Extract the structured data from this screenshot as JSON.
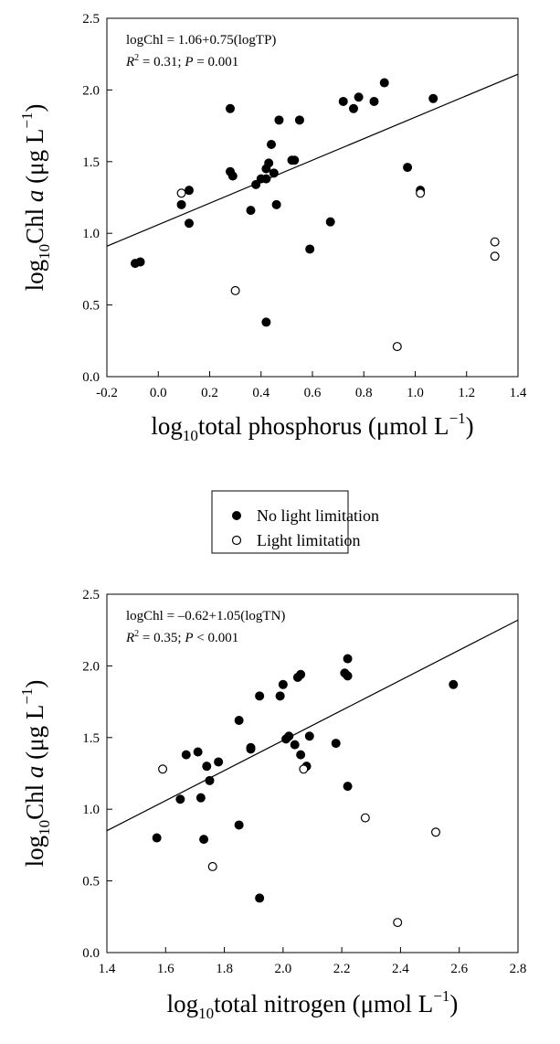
{
  "legend": {
    "items": [
      {
        "label": "No light limitation",
        "marker": "filled-circle",
        "color": "#000000"
      },
      {
        "label": "Light limitation",
        "marker": "open-circle",
        "color": "#000000"
      }
    ]
  },
  "chart_data": [
    {
      "type": "scatter",
      "xlabel": "log10total phosphorus (μmol L−1)",
      "ylabel": "log10Chl a (μg L−1)",
      "xlim": [
        -0.2,
        1.4
      ],
      "ylim": [
        0.0,
        2.5
      ],
      "xticks": [
        "-0.2",
        "0.0",
        "0.2",
        "0.4",
        "0.6",
        "0.8",
        "1.0",
        "1.2",
        "1.4"
      ],
      "yticks": [
        "0.0",
        "0.5",
        "1.0",
        "1.5",
        "2.0",
        "2.5"
      ],
      "equation": "logChl = 1.06+0.75(logTP)",
      "stats": "R2 = 0.31; P = 0.001",
      "regression": {
        "intercept": 1.06,
        "slope": 0.75
      },
      "series": [
        {
          "name": "No light limitation",
          "points": [
            [
              -0.09,
              0.79
            ],
            [
              -0.07,
              0.8
            ],
            [
              0.09,
              1.2
            ],
            [
              0.12,
              1.3
            ],
            [
              0.12,
              1.07
            ],
            [
              0.28,
              1.43
            ],
            [
              0.28,
              1.87
            ],
            [
              0.29,
              1.4
            ],
            [
              0.36,
              1.16
            ],
            [
              0.38,
              1.34
            ],
            [
              0.4,
              1.38
            ],
            [
              0.42,
              1.38
            ],
            [
              0.42,
              1.45
            ],
            [
              0.43,
              1.49
            ],
            [
              0.44,
              1.62
            ],
            [
              0.45,
              1.42
            ],
            [
              0.46,
              1.2
            ],
            [
              0.47,
              1.79
            ],
            [
              0.52,
              1.51
            ],
            [
              0.53,
              1.51
            ],
            [
              0.55,
              1.79
            ],
            [
              0.59,
              0.89
            ],
            [
              0.42,
              0.38
            ],
            [
              0.67,
              1.08
            ],
            [
              0.72,
              1.92
            ],
            [
              0.76,
              1.87
            ],
            [
              0.78,
              1.95
            ],
            [
              0.84,
              1.92
            ],
            [
              0.88,
              2.05
            ],
            [
              0.97,
              1.46
            ],
            [
              1.02,
              1.3
            ],
            [
              1.07,
              1.94
            ]
          ]
        },
        {
          "name": "Light limitation",
          "points": [
            [
              0.09,
              1.28
            ],
            [
              0.3,
              0.6
            ],
            [
              0.93,
              0.21
            ],
            [
              1.02,
              1.28
            ],
            [
              1.31,
              0.94
            ],
            [
              1.31,
              0.84
            ]
          ]
        }
      ]
    },
    {
      "type": "scatter",
      "xlabel": "log10total nitrogen (μmol L−1)",
      "ylabel": "log10Chl a (μg L−1)",
      "xlim": [
        1.4,
        2.8
      ],
      "ylim": [
        0.0,
        2.5
      ],
      "xticks": [
        "1.4",
        "1.6",
        "1.8",
        "2.0",
        "2.2",
        "2.4",
        "2.6",
        "2.8"
      ],
      "yticks": [
        "0.0",
        "0.5",
        "1.0",
        "1.5",
        "2.0",
        "2.5"
      ],
      "equation": "logChl = –0.62+1.05(logTN)",
      "stats": "R2 = 0.35; P < 0.001",
      "regression": {
        "intercept": -0.62,
        "slope": 1.05
      },
      "series": [
        {
          "name": "No light limitation",
          "points": [
            [
              1.57,
              0.8
            ],
            [
              1.65,
              1.07
            ],
            [
              1.67,
              1.38
            ],
            [
              1.71,
              1.4
            ],
            [
              1.72,
              1.08
            ],
            [
              1.73,
              0.79
            ],
            [
              1.74,
              1.3
            ],
            [
              1.75,
              1.2
            ],
            [
              1.78,
              1.33
            ],
            [
              1.85,
              1.62
            ],
            [
              1.85,
              0.89
            ],
            [
              1.89,
              1.42
            ],
            [
              1.89,
              1.43
            ],
            [
              1.92,
              1.79
            ],
            [
              1.92,
              0.38
            ],
            [
              1.99,
              1.79
            ],
            [
              2.0,
              1.87
            ],
            [
              2.01,
              1.49
            ],
            [
              2.02,
              1.51
            ],
            [
              2.04,
              1.45
            ],
            [
              2.05,
              1.92
            ],
            [
              2.06,
              1.94
            ],
            [
              2.06,
              1.38
            ],
            [
              2.08,
              1.3
            ],
            [
              2.09,
              1.51
            ],
            [
              2.18,
              1.46
            ],
            [
              2.21,
              1.95
            ],
            [
              2.22,
              1.93
            ],
            [
              2.22,
              2.05
            ],
            [
              2.22,
              1.16
            ],
            [
              2.58,
              1.87
            ]
          ]
        },
        {
          "name": "Light limitation",
          "points": [
            [
              1.59,
              1.28
            ],
            [
              1.76,
              0.6
            ],
            [
              2.07,
              1.28
            ],
            [
              2.28,
              0.94
            ],
            [
              2.39,
              0.21
            ],
            [
              2.52,
              0.84
            ]
          ]
        }
      ]
    }
  ]
}
